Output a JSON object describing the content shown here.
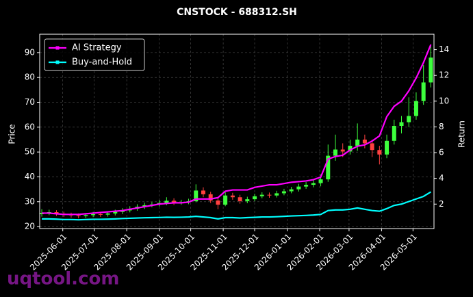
{
  "chart_data": {
    "type": "candlestick",
    "title": "CNSTOCK - 688312.SH",
    "ylabel": "Price",
    "y2label": "Return",
    "watermark": "uqtool.com",
    "x": [
      "2025-05-12",
      "2025-05-19",
      "2025-05-26",
      "2025-06-02",
      "2025-06-09",
      "2025-06-16",
      "2025-06-23",
      "2025-06-30",
      "2025-07-07",
      "2025-07-14",
      "2025-07-21",
      "2025-07-28",
      "2025-08-04",
      "2025-08-11",
      "2025-08-18",
      "2025-08-25",
      "2025-09-01",
      "2025-09-08",
      "2025-09-15",
      "2025-09-22",
      "2025-09-29",
      "2025-10-06",
      "2025-10-13",
      "2025-10-20",
      "2025-10-27",
      "2025-11-03",
      "2025-11-10",
      "2025-11-17",
      "2025-11-24",
      "2025-12-01",
      "2025-12-08",
      "2025-12-15",
      "2025-12-22",
      "2025-12-29",
      "2026-01-05",
      "2026-01-12",
      "2026-01-19",
      "2026-01-26",
      "2026-02-02",
      "2026-02-09",
      "2026-02-16",
      "2026-02-23",
      "2026-03-02",
      "2026-03-09",
      "2026-03-16",
      "2026-03-23",
      "2026-03-30",
      "2026-04-06",
      "2026-04-13",
      "2026-04-20",
      "2026-04-27",
      "2026-05-04",
      "2026-05-11",
      "2026-05-18"
    ],
    "open": [
      25.0,
      25.5,
      25.8,
      25.2,
      24.8,
      24.5,
      24.2,
      24.6,
      25.0,
      24.8,
      25.3,
      25.9,
      26.5,
      27.2,
      28.0,
      28.6,
      28.9,
      29.5,
      30.4,
      29.6,
      29.8,
      30.2,
      34.5,
      33.0,
      30.5,
      28.8,
      32.5,
      31.8,
      30.2,
      31.0,
      32.2,
      32.8,
      32.5,
      33.4,
      34.2,
      35.0,
      36.1,
      36.8,
      37.5,
      39.0,
      48.5,
      51.0,
      50.2,
      52.5,
      55.0,
      53.5,
      50.8,
      49.0,
      54.5,
      60.5,
      62.0,
      64.5,
      70.5,
      78.0
    ],
    "high": [
      27.0,
      26.8,
      26.6,
      26.0,
      25.6,
      25.3,
      25.4,
      25.9,
      25.8,
      26.1,
      26.8,
      27.4,
      28.2,
      29.0,
      29.6,
      29.9,
      30.7,
      31.8,
      31.4,
      30.8,
      31.2,
      37.0,
      35.8,
      34.0,
      31.5,
      33.8,
      33.6,
      32.8,
      32.0,
      33.2,
      33.8,
      33.7,
      34.4,
      35.2,
      36.0,
      37.2,
      37.9,
      38.8,
      41.0,
      53.0,
      57.0,
      53.5,
      55.0,
      61.5,
      57.0,
      55.0,
      52.5,
      57.0,
      63.0,
      64.5,
      72.0,
      74.0,
      85.0,
      93.0
    ],
    "low": [
      24.0,
      24.6,
      24.3,
      23.9,
      23.6,
      23.3,
      23.4,
      23.8,
      23.9,
      24.0,
      24.5,
      25.0,
      25.7,
      26.4,
      27.1,
      27.8,
      28.1,
      28.6,
      28.7,
      28.8,
      29.0,
      29.8,
      31.8,
      29.5,
      27.0,
      28.2,
      30.8,
      29.2,
      29.4,
      30.2,
      31.4,
      31.6,
      31.7,
      32.6,
      33.4,
      34.1,
      35.2,
      35.8,
      36.2,
      38.0,
      46.5,
      48.0,
      49.0,
      50.5,
      51.5,
      48.0,
      45.0,
      47.5,
      53.0,
      57.5,
      60.0,
      63.0,
      69.0,
      76.0
    ],
    "close": [
      25.5,
      25.8,
      25.2,
      24.8,
      24.5,
      24.2,
      24.6,
      25.0,
      24.8,
      25.3,
      25.9,
      26.5,
      27.2,
      28.0,
      28.6,
      28.9,
      29.5,
      30.4,
      29.6,
      29.8,
      30.2,
      34.5,
      33.0,
      30.5,
      28.8,
      32.5,
      31.8,
      30.2,
      31.0,
      32.2,
      32.8,
      32.5,
      33.4,
      34.2,
      35.0,
      36.1,
      36.8,
      37.5,
      39.0,
      48.5,
      51.0,
      50.2,
      52.5,
      55.0,
      53.5,
      50.8,
      49.0,
      54.5,
      60.5,
      62.0,
      64.5,
      70.5,
      78.0,
      88.0
    ],
    "up_color": "#3dff3d",
    "down_color": "#ff4040",
    "series": [
      {
        "name": "AI Strategy",
        "color": "#ff00ff",
        "axis": "y2",
        "values": [
          1.3,
          1.3,
          1.25,
          1.2,
          1.2,
          1.2,
          1.25,
          1.3,
          1.35,
          1.4,
          1.45,
          1.5,
          1.6,
          1.7,
          1.8,
          1.9,
          2.0,
          2.05,
          2.1,
          2.1,
          2.15,
          2.4,
          2.4,
          2.4,
          2.5,
          3.0,
          3.1,
          3.1,
          3.1,
          3.3,
          3.4,
          3.5,
          3.5,
          3.6,
          3.7,
          3.75,
          3.8,
          3.9,
          4.1,
          5.5,
          5.7,
          5.8,
          6.2,
          6.5,
          6.6,
          6.9,
          7.3,
          8.8,
          9.6,
          10.0,
          10.8,
          11.8,
          13.0,
          14.4
        ]
      },
      {
        "name": "Buy-and-Hold",
        "color": "#00ffff",
        "axis": "y2",
        "values": [
          0.85,
          0.85,
          0.83,
          0.8,
          0.8,
          0.78,
          0.8,
          0.82,
          0.82,
          0.83,
          0.85,
          0.88,
          0.9,
          0.92,
          0.94,
          0.95,
          0.96,
          0.98,
          0.97,
          0.98,
          1.0,
          1.05,
          1.0,
          0.95,
          0.85,
          0.95,
          0.95,
          0.92,
          0.95,
          0.97,
          1.0,
          1.0,
          1.02,
          1.05,
          1.08,
          1.1,
          1.12,
          1.15,
          1.2,
          1.5,
          1.55,
          1.55,
          1.6,
          1.7,
          1.6,
          1.5,
          1.45,
          1.65,
          1.9,
          2.0,
          2.2,
          2.4,
          2.6,
          2.95
        ]
      }
    ],
    "xlim": [
      "2025-05-10",
      "2026-05-21"
    ],
    "xticks": [
      "2025-06-01",
      "2025-07-01",
      "2025-08-01",
      "2025-09-01",
      "2025-10-01",
      "2025-11-01",
      "2025-12-01",
      "2026-01-01",
      "2026-02-01",
      "2026-03-01",
      "2026-04-01",
      "2026-05-01"
    ],
    "ylim": [
      19.2,
      97.4
    ],
    "yticks": [
      20,
      30,
      40,
      50,
      60,
      70,
      80,
      90
    ],
    "y2lim": [
      0.1,
      15.2
    ],
    "y2ticks": [
      2,
      4,
      6,
      8,
      10,
      12,
      14
    ],
    "grid": true,
    "legend": "upper-left"
  }
}
